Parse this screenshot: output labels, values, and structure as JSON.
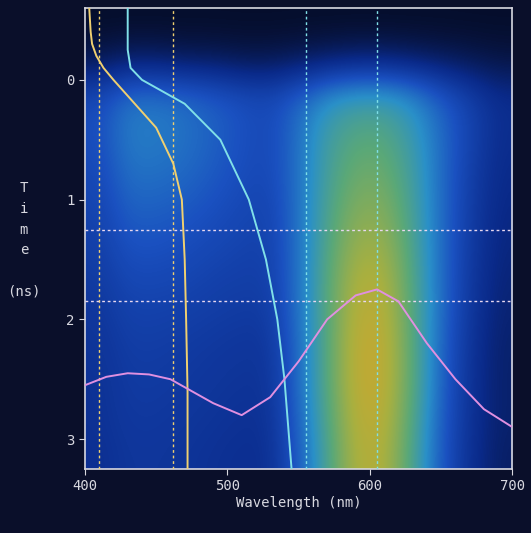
{
  "chart_data": {
    "type": "heatmap",
    "x_label": "Wavelength (nm)",
    "y_label": "Time (ns)",
    "xlim": [
      400,
      700
    ],
    "xticks": [
      400,
      500,
      600,
      700
    ],
    "ylim": [
      3.25,
      -0.6
    ],
    "yticks": [
      0,
      1,
      2,
      3
    ],
    "grid": false,
    "cells_x": [
      400,
      420,
      440,
      460,
      480,
      500,
      520,
      540,
      560,
      580,
      600,
      620,
      640,
      660,
      680,
      700
    ],
    "cells_y": [
      -0.6,
      -0.3,
      0.0,
      0.3,
      0.6,
      0.9,
      1.2,
      1.5,
      1.8,
      2.1,
      2.4,
      2.7,
      3.0,
      3.3
    ],
    "color_range": [
      0,
      1
    ],
    "colors": [
      "#050a20",
      "#0a2a8a",
      "#1a50c0",
      "#2a90c8",
      "#5aa878",
      "#a8b040",
      "#e8a020"
    ],
    "cells": [
      [
        0.02,
        0.02,
        0.02,
        0.02,
        0.02,
        0.02,
        0.02,
        0.02,
        0.02,
        0.02,
        0.02,
        0.02,
        0.02,
        0.02,
        0.02
      ],
      [
        0.08,
        0.12,
        0.12,
        0.1,
        0.1,
        0.08,
        0.08,
        0.1,
        0.12,
        0.14,
        0.14,
        0.12,
        0.1,
        0.08,
        0.06
      ],
      [
        0.3,
        0.42,
        0.42,
        0.4,
        0.36,
        0.32,
        0.3,
        0.38,
        0.5,
        0.55,
        0.55,
        0.48,
        0.36,
        0.26,
        0.18
      ],
      [
        0.32,
        0.45,
        0.45,
        0.42,
        0.38,
        0.33,
        0.3,
        0.42,
        0.58,
        0.65,
        0.65,
        0.55,
        0.4,
        0.28,
        0.18
      ],
      [
        0.3,
        0.42,
        0.42,
        0.4,
        0.36,
        0.32,
        0.3,
        0.42,
        0.6,
        0.7,
        0.7,
        0.58,
        0.4,
        0.26,
        0.17
      ],
      [
        0.28,
        0.38,
        0.38,
        0.36,
        0.33,
        0.3,
        0.28,
        0.42,
        0.62,
        0.75,
        0.75,
        0.6,
        0.4,
        0.25,
        0.16
      ],
      [
        0.26,
        0.34,
        0.34,
        0.32,
        0.3,
        0.28,
        0.27,
        0.42,
        0.64,
        0.8,
        0.8,
        0.62,
        0.4,
        0.24,
        0.15
      ],
      [
        0.24,
        0.3,
        0.3,
        0.29,
        0.27,
        0.26,
        0.26,
        0.42,
        0.66,
        0.85,
        0.85,
        0.64,
        0.4,
        0.23,
        0.14
      ],
      [
        0.22,
        0.27,
        0.27,
        0.26,
        0.25,
        0.24,
        0.24,
        0.42,
        0.66,
        0.88,
        0.88,
        0.65,
        0.4,
        0.22,
        0.13
      ],
      [
        0.21,
        0.25,
        0.25,
        0.24,
        0.23,
        0.22,
        0.22,
        0.4,
        0.66,
        0.9,
        0.9,
        0.66,
        0.38,
        0.21,
        0.12
      ],
      [
        0.2,
        0.24,
        0.24,
        0.23,
        0.22,
        0.21,
        0.21,
        0.4,
        0.66,
        0.9,
        0.9,
        0.66,
        0.38,
        0.2,
        0.12
      ],
      [
        0.2,
        0.23,
        0.23,
        0.22,
        0.21,
        0.2,
        0.2,
        0.38,
        0.64,
        0.88,
        0.88,
        0.64,
        0.36,
        0.2,
        0.12
      ],
      [
        0.19,
        0.22,
        0.22,
        0.21,
        0.2,
        0.19,
        0.19,
        0.36,
        0.62,
        0.86,
        0.86,
        0.62,
        0.35,
        0.19,
        0.11
      ]
    ],
    "cursors": {
      "x": [
        410,
        462,
        555,
        605
      ],
      "y": [
        1.25,
        1.85
      ]
    },
    "series": [
      {
        "type": "line",
        "color": "#f0d070",
        "x": [
          403,
          404,
          405,
          408,
          413,
          420,
          435,
          450,
          462,
          468,
          470,
          471,
          472,
          472
        ],
        "y": [
          -0.6,
          -0.4,
          -0.3,
          -0.2,
          -0.1,
          0.0,
          0.2,
          0.4,
          0.7,
          1.0,
          1.5,
          2.0,
          2.6,
          3.25
        ]
      },
      {
        "type": "line",
        "color": "#80e0e8",
        "x": [
          430,
          430,
          432,
          440,
          455,
          470,
          495,
          515,
          527,
          535,
          540,
          545
        ],
        "y": [
          -0.6,
          -0.25,
          -0.1,
          0.0,
          0.1,
          0.2,
          0.5,
          1.0,
          1.5,
          2.0,
          2.5,
          3.25
        ]
      },
      {
        "type": "line",
        "color": "#e090e0",
        "x": [
          400,
          415,
          430,
          445,
          460,
          475,
          490,
          510,
          530,
          550,
          570,
          590,
          605,
          620,
          640,
          660,
          680,
          700
        ],
        "y": [
          2.55,
          2.48,
          2.45,
          2.46,
          2.5,
          2.6,
          2.7,
          2.8,
          2.65,
          2.35,
          2.0,
          1.8,
          1.75,
          1.85,
          2.2,
          2.5,
          2.75,
          2.9
        ]
      }
    ]
  }
}
